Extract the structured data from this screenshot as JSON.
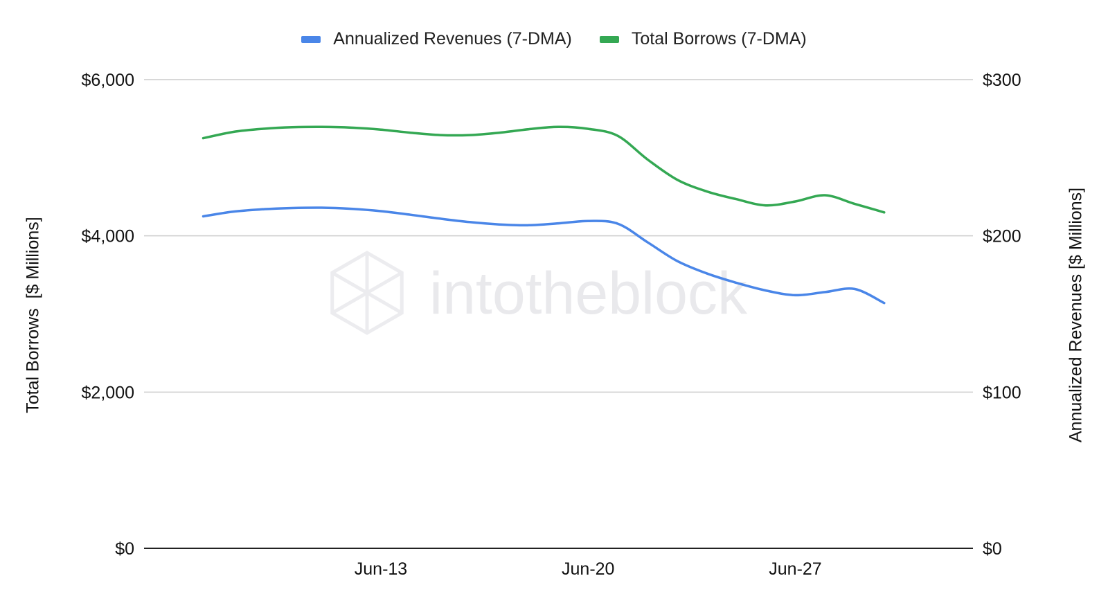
{
  "chart_data": {
    "type": "line",
    "title": "",
    "legend_position": "top",
    "grid": true,
    "watermark": "intotheblock",
    "x_axis": {
      "type": "date",
      "start": "2022-06-05",
      "end": "2022-07-03",
      "ticks": [
        {
          "date": "2022-06-13",
          "label": "Jun-13"
        },
        {
          "date": "2022-06-20",
          "label": "Jun-20"
        },
        {
          "date": "2022-06-27",
          "label": "Jun-27"
        }
      ]
    },
    "y_left": {
      "label": "Total Borrows  [$ Millions]",
      "range": [
        0,
        6000
      ],
      "ticks": [
        {
          "value": 0,
          "label": "$0"
        },
        {
          "value": 2000,
          "label": "$2,000"
        },
        {
          "value": 4000,
          "label": "$4,000"
        },
        {
          "value": 6000,
          "label": "$6,000"
        }
      ]
    },
    "y_right": {
      "label": "Annualized Revenues [$ Millions]",
      "range": [
        0,
        300
      ],
      "ticks": [
        {
          "value": 0,
          "label": "$0"
        },
        {
          "value": 100,
          "label": "$100"
        },
        {
          "value": 200,
          "label": "$200"
        },
        {
          "value": 300,
          "label": "$300"
        }
      ]
    },
    "series": [
      {
        "name": "Annualized Revenues (7-DMA)",
        "axis": "right",
        "color": "#4a86e8",
        "points": [
          [
            "2022-06-07",
            212.5
          ],
          [
            "2022-06-08",
            215.5
          ],
          [
            "2022-06-09",
            217.0
          ],
          [
            "2022-06-10",
            217.8
          ],
          [
            "2022-06-11",
            218.0
          ],
          [
            "2022-06-12",
            217.3
          ],
          [
            "2022-06-13",
            215.8
          ],
          [
            "2022-06-14",
            213.5
          ],
          [
            "2022-06-15",
            211.0
          ],
          [
            "2022-06-16",
            208.8
          ],
          [
            "2022-06-17",
            207.3
          ],
          [
            "2022-06-18",
            206.8
          ],
          [
            "2022-06-19",
            208.0
          ],
          [
            "2022-06-20",
            209.5
          ],
          [
            "2022-06-21",
            207.8
          ],
          [
            "2022-06-22",
            196.0
          ],
          [
            "2022-06-23",
            184.0
          ],
          [
            "2022-06-24",
            176.0
          ],
          [
            "2022-06-25",
            170.0
          ],
          [
            "2022-06-26",
            165.0
          ],
          [
            "2022-06-27",
            162.0
          ],
          [
            "2022-06-28",
            164.0
          ],
          [
            "2022-06-29",
            166.0
          ],
          [
            "2022-06-30",
            157.0
          ]
        ]
      },
      {
        "name": "Total Borrows (7-DMA)",
        "axis": "left",
        "color": "#34a853",
        "points": [
          [
            "2022-06-07",
            5250
          ],
          [
            "2022-06-08",
            5330
          ],
          [
            "2022-06-09",
            5370
          ],
          [
            "2022-06-10",
            5390
          ],
          [
            "2022-06-11",
            5395
          ],
          [
            "2022-06-12",
            5385
          ],
          [
            "2022-06-13",
            5360
          ],
          [
            "2022-06-14",
            5320
          ],
          [
            "2022-06-15",
            5290
          ],
          [
            "2022-06-16",
            5290
          ],
          [
            "2022-06-17",
            5320
          ],
          [
            "2022-06-18",
            5365
          ],
          [
            "2022-06-19",
            5395
          ],
          [
            "2022-06-20",
            5370
          ],
          [
            "2022-06-21",
            5280
          ],
          [
            "2022-06-22",
            4980
          ],
          [
            "2022-06-23",
            4720
          ],
          [
            "2022-06-24",
            4570
          ],
          [
            "2022-06-25",
            4470
          ],
          [
            "2022-06-26",
            4390
          ],
          [
            "2022-06-27",
            4440
          ],
          [
            "2022-06-28",
            4520
          ],
          [
            "2022-06-29",
            4410
          ],
          [
            "2022-06-30",
            4300
          ]
        ]
      }
    ]
  }
}
